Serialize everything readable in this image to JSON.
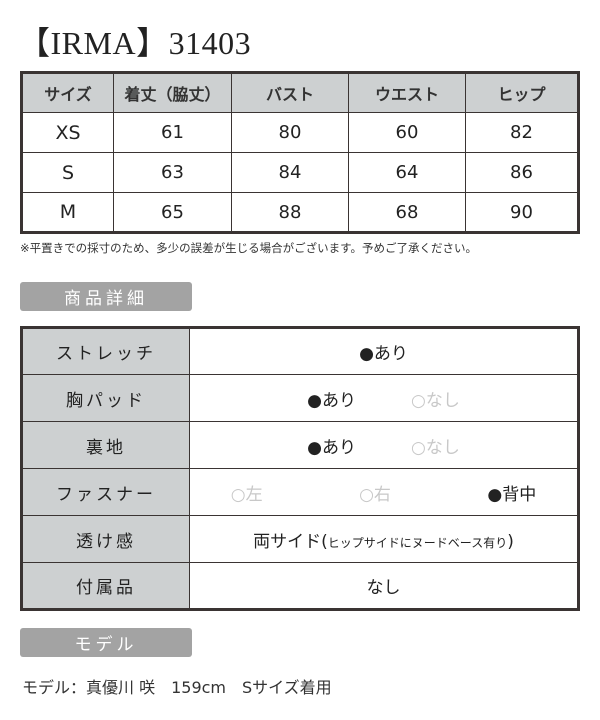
{
  "title": "【IRMA】31403",
  "size_table": {
    "headers": [
      "サイズ",
      "着丈（脇丈）",
      "バスト",
      "ウエスト",
      "ヒップ"
    ],
    "rows": [
      [
        "XS",
        "61",
        "80",
        "60",
        "82"
      ],
      [
        "S",
        "63",
        "84",
        "64",
        "86"
      ],
      [
        "M",
        "65",
        "88",
        "68",
        "90"
      ]
    ]
  },
  "note": "※平置きでの採寸のため、多少の誤差が生じる場合がございます。予めご了承ください。",
  "details_heading": "商品詳細",
  "details": {
    "stretch": {
      "label": "ストレッチ",
      "value": "●あり"
    },
    "pad": {
      "label": "胸パッド",
      "on": "●あり",
      "off": "○なし"
    },
    "lining": {
      "label": "裏地",
      "on": "●あり",
      "off": "○なし"
    },
    "zipper": {
      "label": "ファスナー",
      "left": "○左",
      "right": "○右",
      "back": "●背中"
    },
    "sheer": {
      "label": "透け感",
      "value": "両サイド(",
      "value_small": "ヒップサイドにヌードベース有り",
      "value_end": ")"
    },
    "accessories": {
      "label": "付属品",
      "value": "なし"
    }
  },
  "model_heading": "モデル",
  "model_text": "モデル：真優川 咲　159cm　Sサイズ着用",
  "colors": {
    "header_bg": "#cdd0d1",
    "pill_bg": "#a3a3a3",
    "border": "#3a3433"
  }
}
